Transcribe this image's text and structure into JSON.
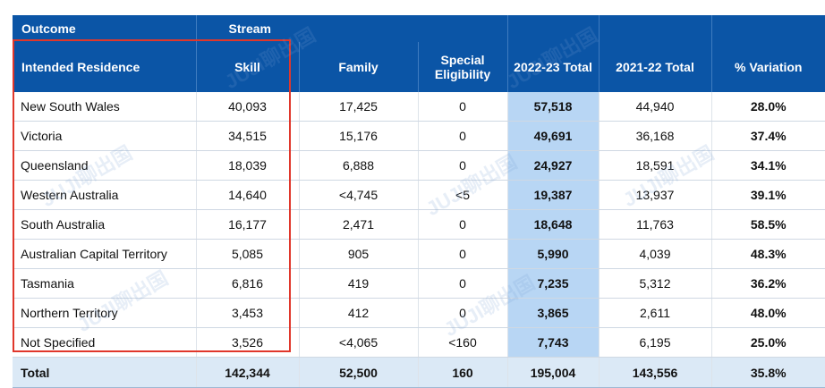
{
  "header": {
    "outcome": "Outcome",
    "stream": "Stream",
    "columns": [
      "Intended Residence",
      "Skill",
      "Family",
      "Special Eligibility",
      "2022-23 Total",
      "2021-22 Total",
      "% Variation"
    ]
  },
  "rows": [
    [
      "New South Wales",
      "40,093",
      "17,425",
      "0",
      "57,518",
      "44,940",
      "28.0%"
    ],
    [
      "Victoria",
      "34,515",
      "15,176",
      "0",
      "49,691",
      "36,168",
      "37.4%"
    ],
    [
      "Queensland",
      "18,039",
      "6,888",
      "0",
      "24,927",
      "18,591",
      "34.1%"
    ],
    [
      "Western Australia",
      "14,640",
      "<4,745",
      "<5",
      "19,387",
      "13,937",
      "39.1%"
    ],
    [
      "South Australia",
      "16,177",
      "2,471",
      "0",
      "18,648",
      "11,763",
      "58.5%"
    ],
    [
      "Australian Capital Territory",
      "5,085",
      "905",
      "0",
      "5,990",
      "4,039",
      "48.3%"
    ],
    [
      "Tasmania",
      "6,816",
      "419",
      "0",
      "7,235",
      "5,312",
      "36.2%"
    ],
    [
      "Northern Territory",
      "3,453",
      "412",
      "0",
      "3,865",
      "2,611",
      "48.0%"
    ],
    [
      "Not Specified",
      "3,526",
      "<4,065",
      "<160",
      "7,743",
      "6,195",
      "25.0%"
    ]
  ],
  "total": [
    "Total",
    "142,344",
    "52,500",
    "160",
    "195,004",
    "143,556",
    "35.8%"
  ],
  "watermark": "JUJI聊出国",
  "colors": {
    "header": "#0b55a6",
    "highlight": "#b8d6f4",
    "total_row": "#dbe9f6",
    "annotation_box": "#e0372b"
  }
}
